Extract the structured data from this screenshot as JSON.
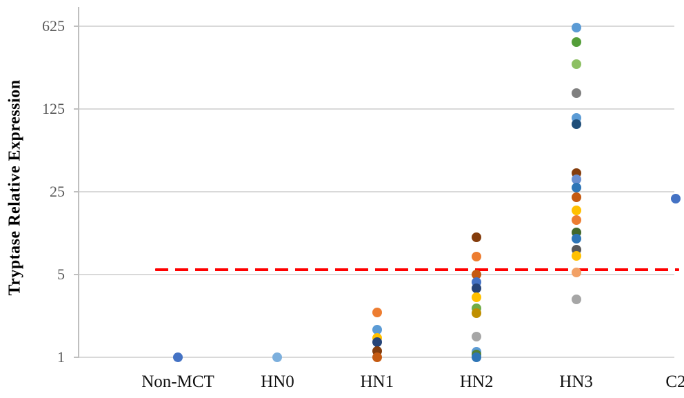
{
  "chart_data": {
    "type": "scatter",
    "title": "",
    "ylabel": "Tryptase Relative Expression",
    "xlabel": "",
    "yscale": "log",
    "log_base": 5,
    "yticks": [
      625,
      125,
      25,
      5,
      1
    ],
    "ylim": [
      1,
      1100
    ],
    "grid": "horizontal-only",
    "legend": "none",
    "categories": [
      "Non-MCT",
      "HN0",
      "HN1",
      "HN2",
      "HN3",
      "C2"
    ],
    "threshold_line": {
      "value": 5.5,
      "color": "#FF0000",
      "style": "dashed"
    },
    "series": [
      {
        "category": "Non-MCT",
        "points": [
          {
            "value": 1.0,
            "color": "#4472C4"
          }
        ]
      },
      {
        "category": "HN0",
        "points": [
          {
            "value": 1.0,
            "color": "#7CAFDD"
          }
        ]
      },
      {
        "category": "HN1",
        "points": [
          {
            "value": 2.4,
            "color": "#ED7D31"
          },
          {
            "value": 1.7,
            "color": "#5B9BD5"
          },
          {
            "value": 1.45,
            "color": "#FFC000"
          },
          {
            "value": 1.35,
            "color": "#264478"
          },
          {
            "value": 1.13,
            "color": "#843C0C"
          },
          {
            "value": 1.0,
            "color": "#C55A11"
          }
        ]
      },
      {
        "category": "HN2",
        "points": [
          {
            "value": 10.3,
            "color": "#843C0C"
          },
          {
            "value": 7.1,
            "color": "#ED7D31"
          },
          {
            "value": 5.0,
            "color": "#C55A11"
          },
          {
            "value": 4.3,
            "color": "#4472C4"
          },
          {
            "value": 3.8,
            "color": "#264478"
          },
          {
            "value": 3.2,
            "color": "#FFC000"
          },
          {
            "value": 2.6,
            "color": "#70AD47"
          },
          {
            "value": 2.35,
            "color": "#BF8F00"
          },
          {
            "value": 1.5,
            "color": "#A6A6A6"
          },
          {
            "value": 1.12,
            "color": "#5B9BD5"
          },
          {
            "value": 1.06,
            "color": "#538135"
          },
          {
            "value": 1.0,
            "color": "#2E75B6"
          }
        ]
      },
      {
        "category": "HN3",
        "points": [
          {
            "value": 610,
            "color": "#5B9BD5"
          },
          {
            "value": 460,
            "color": "#549E39"
          },
          {
            "value": 300,
            "color": "#8DC063"
          },
          {
            "value": 170,
            "color": "#7F7F7F"
          },
          {
            "value": 105,
            "color": "#5B9BD5"
          },
          {
            "value": 93,
            "color": "#1F4E79"
          },
          {
            "value": 36,
            "color": "#843C0C"
          },
          {
            "value": 32,
            "color": "#698ED0"
          },
          {
            "value": 27,
            "color": "#2E75B6"
          },
          {
            "value": 22.5,
            "color": "#C55A11"
          },
          {
            "value": 17.5,
            "color": "#FFC000"
          },
          {
            "value": 14.5,
            "color": "#ED7D31"
          },
          {
            "value": 11.3,
            "color": "#41682B"
          },
          {
            "value": 10.0,
            "color": "#2E75B6"
          },
          {
            "value": 8.1,
            "color": "#595959"
          },
          {
            "value": 7.2,
            "color": "#FFC000"
          },
          {
            "value": 5.2,
            "color": "#F2A166"
          },
          {
            "value": 3.1,
            "color": "#A6A6A6"
          }
        ]
      },
      {
        "category": "C2",
        "points": [
          {
            "value": 22,
            "color": "#4472C4"
          }
        ]
      }
    ],
    "colors": {
      "axis_line": "#BFBFBF",
      "gridline": "#D9D9D9",
      "tick_label": "#595959",
      "category_label": "#111111",
      "threshold": "#FF0000"
    }
  }
}
